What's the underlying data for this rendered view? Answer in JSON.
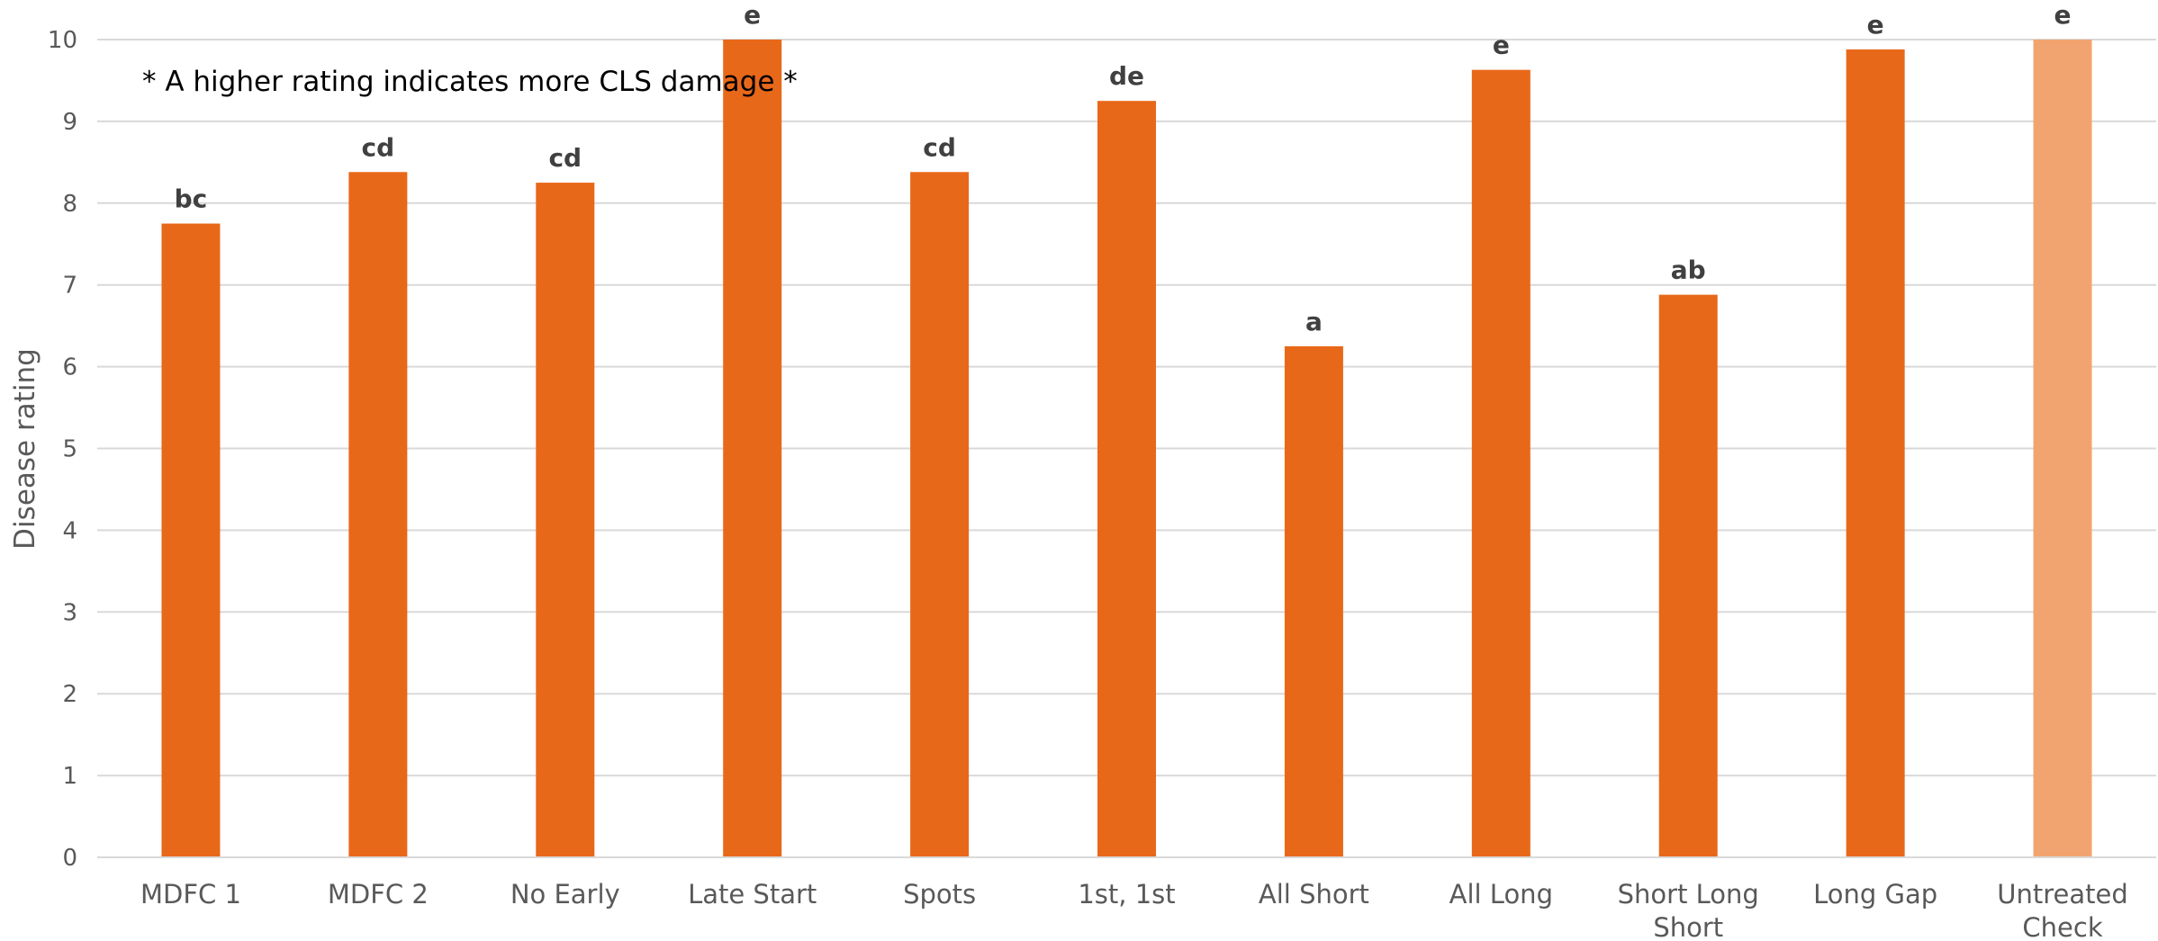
{
  "chart_data": {
    "type": "bar",
    "title": "",
    "xlabel": "",
    "ylabel": "Disease rating",
    "ylim": [
      0,
      10
    ],
    "yticks": [
      "0",
      "1",
      "2",
      "3",
      "4",
      "5",
      "6",
      "7",
      "8",
      "9",
      "10"
    ],
    "grid": true,
    "annotation": "* A higher rating indicates more CLS damage *",
    "categories": [
      [
        "MDFC 1"
      ],
      [
        "MDFC 2"
      ],
      [
        "No Early"
      ],
      [
        "Late Start"
      ],
      [
        "Spots"
      ],
      [
        "1st, 1st"
      ],
      [
        "All Short"
      ],
      [
        "All Long"
      ],
      [
        "Short Long",
        "Short"
      ],
      [
        "Long Gap"
      ],
      [
        "Untreated",
        "Check"
      ]
    ],
    "values": [
      7.75,
      8.38,
      8.25,
      10.0,
      8.38,
      9.25,
      6.25,
      9.63,
      6.88,
      9.88,
      10.0
    ],
    "data_labels": [
      "bc",
      "cd",
      "cd",
      "e",
      "cd",
      "de",
      "a",
      "e",
      "ab",
      "e",
      "e"
    ],
    "colors": {
      "bar": "#E8681A",
      "highlight_bar": "#F2A470",
      "grid": "#d9d9d9"
    },
    "highlight_index": 10
  }
}
